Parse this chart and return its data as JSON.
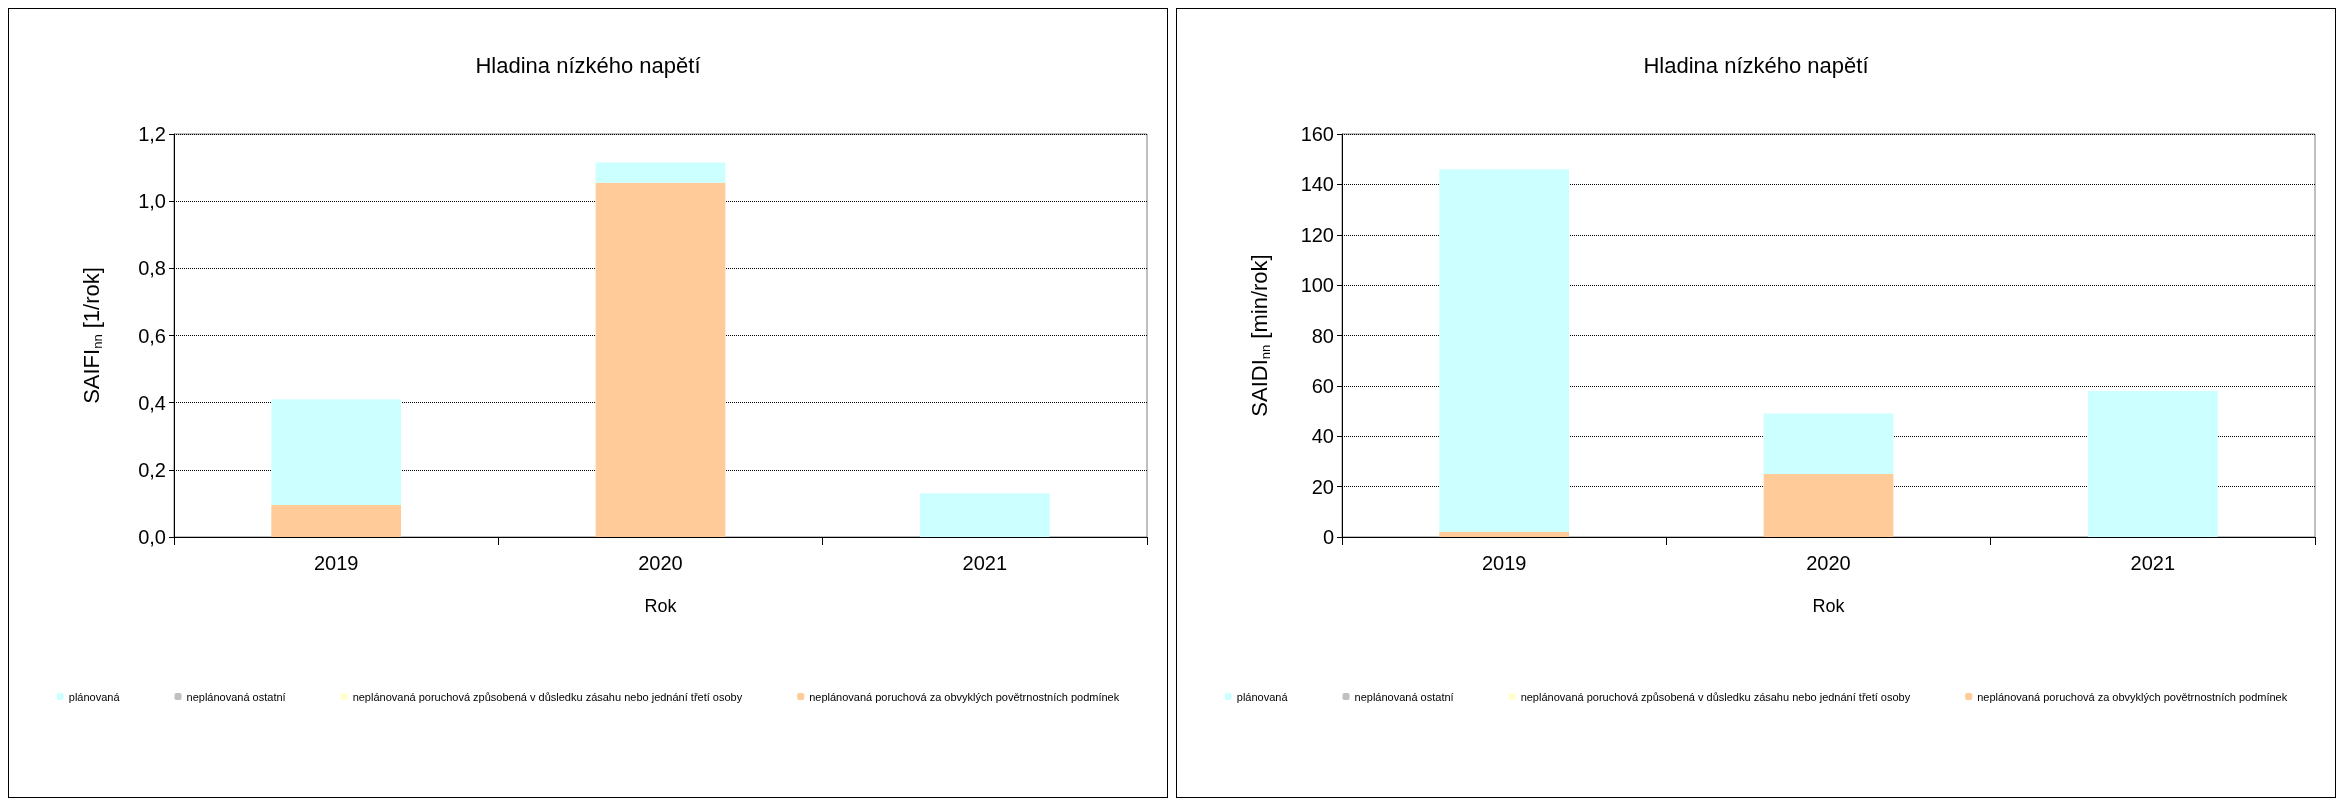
{
  "chart_data": [
    {
      "type": "bar",
      "title": "Hladina nízkého napětí",
      "xlabel": "Rok",
      "ylabel": "SAIFI$_{nn}$ [1/rok]",
      "categories": [
        "2019",
        "2020",
        "2021"
      ],
      "stacked": true,
      "series": [
        {
          "name": "neplánovaná poruchová za obvyklých povětrnostních podmínek",
          "color": "#ffcc99",
          "values": [
            0.095,
            1.055,
            0
          ]
        },
        {
          "name": "neplánovaná poruchová způsobená v důsledku zásahu nebo jednání třetí osoby",
          "color": "#ffffcc",
          "values": [
            0,
            0,
            0
          ]
        },
        {
          "name": "neplánovaná ostatní",
          "color": "#c0c0c0",
          "values": [
            0,
            0,
            0
          ]
        },
        {
          "name": "plánovaná",
          "color": "#ccffff",
          "values": [
            0.315,
            0.06,
            0.13
          ]
        }
      ],
      "ylim": [
        0,
        1.2
      ],
      "yticks": [
        {
          "value": 0,
          "label": "0,0"
        },
        {
          "value": 0.2,
          "label": "0,2"
        },
        {
          "value": 0.4,
          "label": "0,4"
        },
        {
          "value": 0.6,
          "label": "0,6"
        },
        {
          "value": 0.8,
          "label": "0,8"
        },
        {
          "value": 1.0,
          "label": "1,0"
        },
        {
          "value": 1.2,
          "label": "1,2"
        }
      ],
      "grid": "y",
      "legend": "bottom"
    },
    {
      "type": "bar",
      "title": "Hladina nízkého napětí",
      "xlabel": "Rok",
      "ylabel": "SAIDI$_{nn}$ [min/rok]",
      "categories": [
        "2019",
        "2020",
        "2021"
      ],
      "stacked": true,
      "series": [
        {
          "name": "neplánovaná poruchová za obvyklých povětrnostních podmínek",
          "color": "#ffcc99",
          "values": [
            2,
            25,
            0
          ]
        },
        {
          "name": "neplánovaná poruchová způsobená v důsledku zásahu nebo jednání třetí osoby",
          "color": "#ffffcc",
          "values": [
            0,
            0,
            0
          ]
        },
        {
          "name": "neplánovaná ostatní",
          "color": "#c0c0c0",
          "values": [
            0,
            0,
            0
          ]
        },
        {
          "name": "plánovaná",
          "color": "#ccffff",
          "values": [
            144,
            24,
            58
          ]
        }
      ],
      "ylim": [
        0,
        160
      ],
      "yticks": [
        0,
        20,
        40,
        60,
        80,
        100,
        120,
        140,
        160
      ],
      "grid": "y",
      "legend": "bottom"
    }
  ]
}
